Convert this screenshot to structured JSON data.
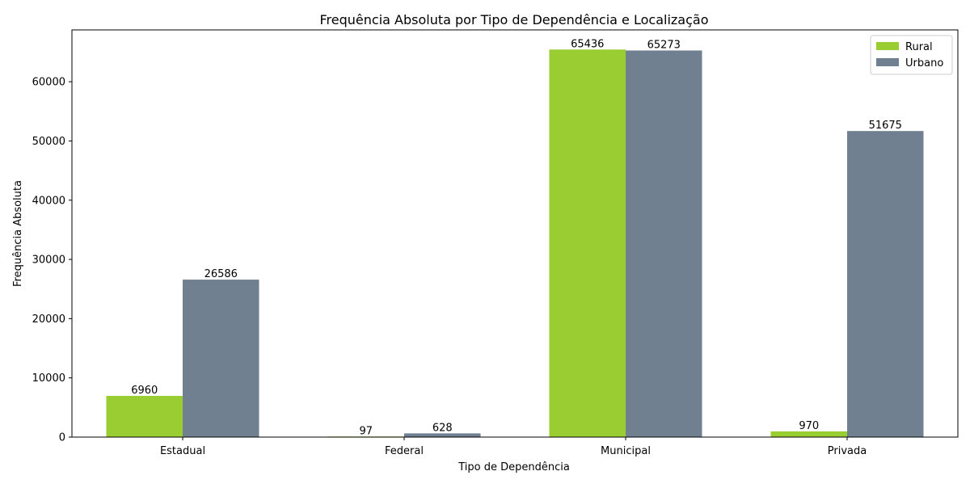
{
  "chart_data": {
    "type": "bar",
    "title": "Frequência Absoluta por Tipo de Dependência e Localização",
    "xlabel": "Tipo de Dependência",
    "ylabel": "Frequência Absoluta",
    "categories": [
      "Estadual",
      "Federal",
      "Municipal",
      "Privada"
    ],
    "series": [
      {
        "name": "Rural",
        "color": "#9acd32",
        "values": [
          6960,
          97,
          65436,
          970
        ]
      },
      {
        "name": "Urbano",
        "color": "#708090",
        "values": [
          26586,
          628,
          65273,
          51675
        ]
      }
    ],
    "ylim": [
      0,
      68750
    ],
    "yticks": [
      0,
      10000,
      20000,
      30000,
      40000,
      50000,
      60000
    ],
    "grid": false,
    "legend_position": "top-right",
    "data_labels": true
  }
}
